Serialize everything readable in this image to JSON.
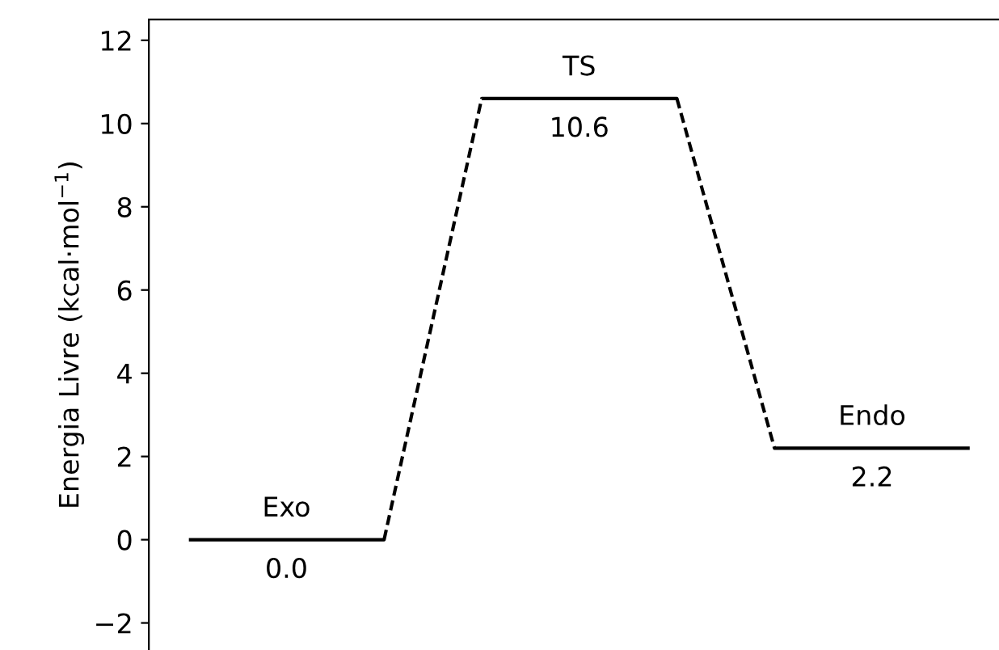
{
  "chart_data": {
    "type": "line",
    "ylabel": "Energia Livre (kcal·mol$^{−1}$)",
    "categories": [
      null,
      null,
      null,
      null,
      null,
      null,
      null,
      null,
      null
    ],
    "series": [
      {
        "values": [
          0.0,
          0.0,
          0.0,
          10.6,
          10.6,
          10.6,
          2.2,
          2.2,
          2.2
        ],
        "value_labels": [
          null,
          "0.0",
          null,
          null,
          "10.6",
          null,
          null,
          "2.2",
          null
        ],
        "color": "#000000",
        "line_style": "dashed"
      }
    ],
    "annotations": [
      {
        "text": "Exo",
        "y": 0.0
      },
      {
        "text": "TS",
        "y": 10.6
      },
      {
        "text": "Endo",
        "y": 2.2
      }
    ],
    "tick_labels": "y",
    "grid": false,
    "legend": false,
    "ylim": [
      -2.65,
      12.5
    ],
    "yticks": [
      {
        "value": -2,
        "label": "−2"
      },
      0,
      2,
      4,
      6,
      8,
      10,
      12
    ]
  }
}
